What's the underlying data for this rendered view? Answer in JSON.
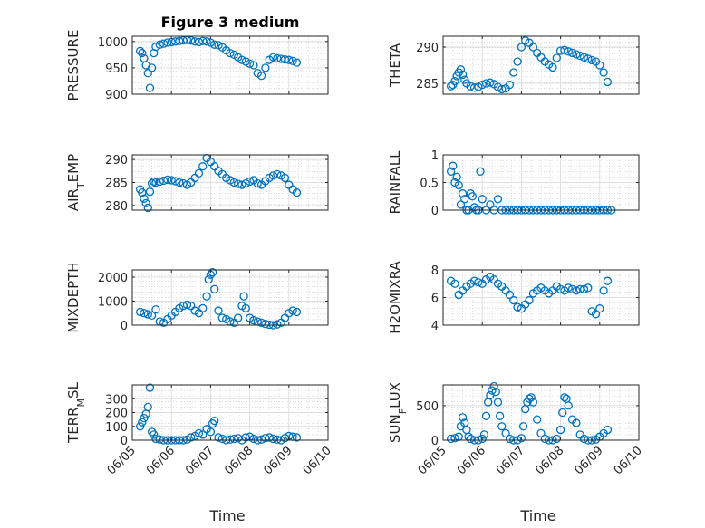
{
  "figure": {
    "title": "Figure 3 medium"
  },
  "colors": {
    "marker": "#0072bd",
    "grid": "#c8c8c8",
    "axis": "#262626"
  },
  "chart_data": [
    {
      "type": "scatter",
      "ylabel": "PRESSURE",
      "ylim": [
        900,
        1010
      ],
      "yticks": [
        900,
        950,
        1000
      ],
      "ytick_labels": [
        "900",
        "950",
        "1000"
      ],
      "xlim": [
        0,
        5
      ],
      "grid": true,
      "minor_grid": true,
      "x": [
        0.2,
        0.25,
        0.3,
        0.35,
        0.4,
        0.45,
        0.5,
        0.55,
        0.6,
        0.7,
        0.8,
        0.9,
        1.0,
        1.1,
        1.2,
        1.3,
        1.4,
        1.5,
        1.6,
        1.7,
        1.8,
        1.9,
        2.0,
        2.1,
        2.2,
        2.3,
        2.4,
        2.5,
        2.6,
        2.7,
        2.8,
        2.9,
        3.0,
        3.1,
        3.2,
        3.3,
        3.4,
        3.5,
        3.6,
        3.7,
        3.8,
        3.9,
        4.0,
        4.1,
        4.2
      ],
      "values": [
        982,
        978,
        968,
        955,
        940,
        912,
        950,
        978,
        990,
        994,
        996,
        998,
        999,
        1000,
        1001,
        1002,
        1003,
        1002,
        1000,
        999,
        1001,
        1000,
        998,
        994,
        993,
        989,
        983,
        978,
        975,
        970,
        965,
        962,
        958,
        955,
        940,
        935,
        950,
        965,
        970,
        968,
        967,
        966,
        965,
        963,
        960
      ]
    },
    {
      "type": "scatter",
      "ylabel": "THETA",
      "ylim": [
        283.5,
        291.5
      ],
      "yticks": [
        285,
        290
      ],
      "ytick_labels": [
        "285",
        "290"
      ],
      "xlim": [
        0,
        5
      ],
      "grid": true,
      "minor_grid": true,
      "x": [
        0.2,
        0.25,
        0.3,
        0.35,
        0.4,
        0.45,
        0.5,
        0.55,
        0.6,
        0.7,
        0.8,
        0.9,
        1.0,
        1.1,
        1.2,
        1.3,
        1.4,
        1.5,
        1.6,
        1.7,
        1.8,
        1.9,
        2.0,
        2.1,
        2.2,
        2.3,
        2.4,
        2.5,
        2.6,
        2.7,
        2.8,
        2.9,
        3.0,
        3.1,
        3.2,
        3.3,
        3.4,
        3.5,
        3.6,
        3.7,
        3.8,
        3.9,
        4.0,
        4.1,
        4.2
      ],
      "values": [
        284.6,
        284.8,
        285.3,
        286.0,
        286.5,
        286.9,
        286.2,
        285.5,
        285.0,
        284.6,
        284.4,
        284.5,
        284.8,
        285.0,
        285.1,
        284.9,
        284.5,
        284.2,
        284.3,
        284.8,
        286.5,
        288.0,
        290.0,
        290.9,
        290.6,
        290.0,
        289.2,
        288.6,
        288.0,
        287.6,
        287.2,
        288.5,
        289.5,
        289.6,
        289.4,
        289.2,
        289.0,
        288.8,
        288.6,
        288.4,
        288.2,
        288.0,
        287.5,
        286.5,
        285.2
      ]
    },
    {
      "type": "scatter",
      "ylabel": "AIR_TEMP",
      "ylim": [
        279,
        291
      ],
      "yticks": [
        280,
        285,
        290
      ],
      "ytick_labels": [
        "280",
        "285",
        "290"
      ],
      "xlim": [
        0,
        5
      ],
      "grid": true,
      "minor_grid": true,
      "x": [
        0.2,
        0.25,
        0.3,
        0.35,
        0.4,
        0.45,
        0.5,
        0.55,
        0.6,
        0.7,
        0.8,
        0.9,
        1.0,
        1.1,
        1.2,
        1.3,
        1.4,
        1.5,
        1.6,
        1.7,
        1.8,
        1.9,
        2.0,
        2.1,
        2.2,
        2.3,
        2.4,
        2.5,
        2.6,
        2.7,
        2.8,
        2.9,
        3.0,
        3.1,
        3.2,
        3.3,
        3.4,
        3.5,
        3.6,
        3.7,
        3.8,
        3.9,
        4.0,
        4.1,
        4.2
      ],
      "values": [
        283.5,
        282.8,
        281.5,
        280.5,
        279.5,
        283.0,
        284.8,
        285.2,
        285.0,
        285.2,
        285.4,
        285.6,
        285.5,
        285.3,
        285.0,
        284.8,
        284.5,
        285.0,
        286.0,
        287.0,
        288.5,
        290.3,
        289.5,
        288.5,
        287.5,
        286.8,
        286.0,
        285.5,
        285.0,
        284.7,
        284.5,
        284.8,
        285.2,
        285.5,
        284.8,
        284.5,
        285.3,
        286.0,
        286.5,
        286.8,
        286.5,
        286.0,
        284.5,
        283.5,
        282.8
      ]
    },
    {
      "type": "scatter",
      "ylabel": "RAINFALL",
      "ylim": [
        0,
        1
      ],
      "yticks": [
        0,
        0.5,
        1
      ],
      "ytick_labels": [
        "0",
        "0.5",
        "1"
      ],
      "xlim": [
        0,
        5
      ],
      "grid": true,
      "minor_grid": true,
      "x": [
        0.2,
        0.25,
        0.3,
        0.35,
        0.4,
        0.45,
        0.5,
        0.55,
        0.6,
        0.65,
        0.7,
        0.75,
        0.8,
        0.85,
        0.9,
        0.95,
        1.0,
        1.1,
        1.2,
        1.3,
        1.4,
        1.5,
        1.6,
        1.7,
        1.8,
        1.9,
        2.0,
        2.1,
        2.2,
        2.3,
        2.4,
        2.5,
        2.6,
        2.7,
        2.8,
        2.9,
        3.0,
        3.1,
        3.2,
        3.3,
        3.4,
        3.5,
        3.6,
        3.7,
        3.8,
        3.9,
        4.0,
        4.1,
        4.2,
        4.3
      ],
      "values": [
        0.7,
        0.8,
        0.5,
        0.6,
        0.45,
        0.1,
        0.3,
        0.2,
        0.0,
        0.0,
        0.3,
        0.25,
        0.05,
        0.0,
        0.0,
        0.7,
        0.2,
        0.0,
        0.1,
        0.0,
        0.2,
        0.0,
        0.0,
        0.0,
        0.0,
        0.0,
        0.0,
        0.0,
        0.0,
        0.0,
        0.0,
        0.0,
        0.0,
        0.0,
        0.0,
        0.0,
        0.0,
        0.0,
        0.0,
        0.0,
        0.0,
        0.0,
        0.0,
        0.0,
        0.0,
        0.0,
        0.0,
        0.0,
        0.0,
        0.0
      ]
    },
    {
      "type": "scatter",
      "ylabel": "MIXDEPTH",
      "ylim": [
        0,
        2300
      ],
      "yticks": [
        0,
        1000,
        2000
      ],
      "ytick_labels": [
        "0",
        "1000",
        "2000"
      ],
      "xlim": [
        0,
        5
      ],
      "grid": true,
      "minor_grid": true,
      "x": [
        0.2,
        0.3,
        0.4,
        0.5,
        0.6,
        0.7,
        0.8,
        0.9,
        1.0,
        1.1,
        1.2,
        1.3,
        1.4,
        1.5,
        1.6,
        1.7,
        1.8,
        1.9,
        1.95,
        2.0,
        2.05,
        2.1,
        2.2,
        2.3,
        2.4,
        2.5,
        2.6,
        2.7,
        2.8,
        2.85,
        2.9,
        3.0,
        3.1,
        3.2,
        3.3,
        3.4,
        3.5,
        3.6,
        3.7,
        3.8,
        3.9,
        4.0,
        4.1,
        4.2
      ],
      "values": [
        550,
        500,
        450,
        400,
        650,
        150,
        100,
        250,
        400,
        550,
        700,
        800,
        850,
        800,
        600,
        500,
        700,
        1200,
        1900,
        2100,
        2200,
        1500,
        600,
        300,
        250,
        150,
        100,
        300,
        800,
        1200,
        700,
        300,
        200,
        150,
        100,
        50,
        20,
        0,
        30,
        100,
        300,
        500,
        600,
        550
      ]
    },
    {
      "type": "scatter",
      "ylabel": "H2OMIXRA",
      "ylim": [
        4,
        8
      ],
      "yticks": [
        4,
        6,
        8
      ],
      "ytick_labels": [
        "4",
        "6",
        "8"
      ],
      "xlim": [
        0,
        5
      ],
      "grid": true,
      "minor_grid": true,
      "x": [
        0.2,
        0.3,
        0.4,
        0.5,
        0.6,
        0.7,
        0.8,
        0.9,
        1.0,
        1.1,
        1.2,
        1.3,
        1.4,
        1.5,
        1.6,
        1.7,
        1.8,
        1.9,
        2.0,
        2.1,
        2.2,
        2.3,
        2.4,
        2.5,
        2.6,
        2.7,
        2.8,
        2.9,
        3.0,
        3.1,
        3.2,
        3.3,
        3.4,
        3.5,
        3.6,
        3.7,
        3.8,
        3.9,
        4.0,
        4.1,
        4.2
      ],
      "values": [
        7.2,
        7.0,
        6.2,
        6.5,
        6.8,
        7.0,
        7.2,
        7.1,
        7.0,
        7.3,
        7.5,
        7.3,
        7.0,
        6.8,
        6.5,
        6.2,
        5.8,
        5.3,
        5.2,
        5.5,
        5.8,
        6.3,
        6.5,
        6.7,
        6.5,
        6.3,
        6.5,
        6.8,
        6.6,
        6.5,
        6.7,
        6.6,
        6.5,
        6.6,
        6.6,
        6.7,
        5.0,
        4.8,
        5.2,
        6.5,
        7.2
      ]
    },
    {
      "type": "scatter",
      "ylabel": "TERR_MSL",
      "ylim": [
        0,
        400
      ],
      "yticks": [
        0,
        100,
        200,
        300
      ],
      "ytick_labels": [
        "0",
        "100",
        "200",
        "300"
      ],
      "xlim": [
        0,
        5
      ],
      "grid": true,
      "minor_grid": true,
      "x": [
        0.2,
        0.25,
        0.3,
        0.35,
        0.4,
        0.45,
        0.5,
        0.55,
        0.6,
        0.7,
        0.8,
        0.9,
        1.0,
        1.1,
        1.2,
        1.3,
        1.4,
        1.5,
        1.6,
        1.7,
        1.8,
        1.9,
        2.0,
        2.05,
        2.1,
        2.2,
        2.3,
        2.4,
        2.5,
        2.6,
        2.7,
        2.8,
        2.9,
        3.0,
        3.1,
        3.2,
        3.3,
        3.4,
        3.5,
        3.6,
        3.7,
        3.8,
        3.9,
        4.0,
        4.1,
        4.2
      ],
      "values": [
        100,
        130,
        160,
        190,
        240,
        380,
        60,
        40,
        10,
        5,
        0,
        0,
        0,
        0,
        0,
        0,
        5,
        20,
        30,
        50,
        40,
        80,
        60,
        120,
        140,
        20,
        10,
        0,
        5,
        10,
        15,
        0,
        20,
        25,
        10,
        0,
        5,
        15,
        20,
        10,
        5,
        0,
        15,
        30,
        25,
        20
      ]
    },
    {
      "type": "scatter",
      "ylabel": "SUN_FLUX",
      "ylim": [
        0,
        800
      ],
      "yticks": [
        0,
        500
      ],
      "ytick_labels": [
        "0",
        "500"
      ],
      "xlim": [
        0,
        5
      ],
      "grid": true,
      "minor_grid": true,
      "x": [
        0.2,
        0.3,
        0.4,
        0.45,
        0.5,
        0.55,
        0.6,
        0.65,
        0.7,
        0.8,
        0.9,
        1.0,
        1.05,
        1.1,
        1.15,
        1.2,
        1.25,
        1.3,
        1.35,
        1.4,
        1.45,
        1.5,
        1.6,
        1.7,
        1.8,
        1.9,
        2.0,
        2.05,
        2.1,
        2.15,
        2.2,
        2.25,
        2.3,
        2.4,
        2.5,
        2.6,
        2.7,
        2.8,
        2.9,
        3.0,
        3.05,
        3.1,
        3.15,
        3.2,
        3.3,
        3.4,
        3.5,
        3.6,
        3.7,
        3.8,
        3.9,
        4.0,
        4.1,
        4.2
      ],
      "values": [
        20,
        30,
        50,
        200,
        330,
        250,
        150,
        50,
        20,
        0,
        0,
        20,
        80,
        350,
        550,
        650,
        720,
        780,
        700,
        550,
        350,
        200,
        100,
        20,
        0,
        0,
        30,
        200,
        450,
        550,
        600,
        620,
        550,
        300,
        100,
        20,
        0,
        0,
        20,
        150,
        400,
        620,
        600,
        500,
        300,
        250,
        80,
        20,
        0,
        0,
        10,
        50,
        100,
        150
      ]
    }
  ],
  "x_axis": {
    "label": "Time",
    "ticks": [
      0,
      1,
      2,
      3,
      4,
      5
    ],
    "tick_labels": [
      "06/05",
      "06/06",
      "06/07",
      "06/08",
      "06/09",
      "06/10"
    ]
  }
}
